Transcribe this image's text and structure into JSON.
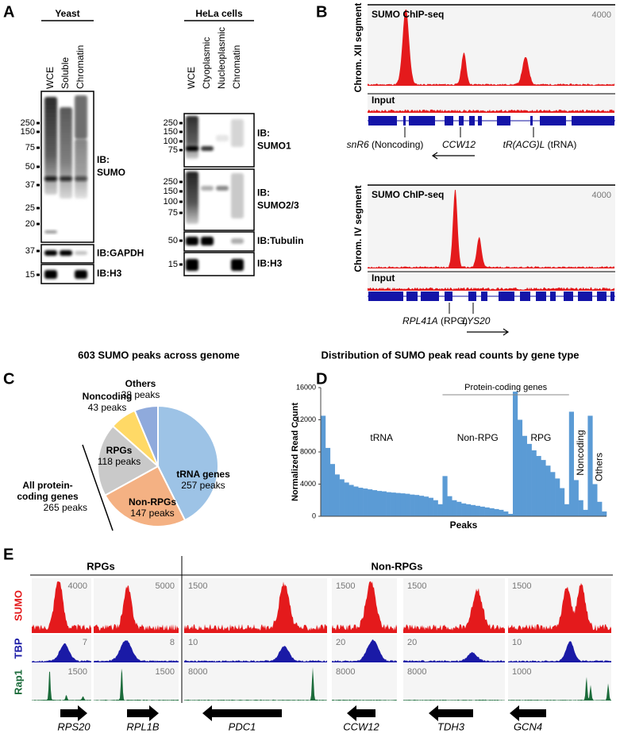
{
  "panel_letters": [
    "A",
    "B",
    "C",
    "D",
    "E"
  ],
  "panel_a": {
    "yeast": {
      "title": "Yeast",
      "lanes": [
        "WCE",
        "Soluble",
        "Chromatin"
      ],
      "blots": [
        {
          "markers": [
            250,
            150,
            75,
            50,
            37,
            25,
            20
          ],
          "label": [
            "IB:",
            "SUMO"
          ]
        },
        {
          "markers": [
            37
          ],
          "label": [
            "IB:GAPDH"
          ]
        },
        {
          "markers": [
            15
          ],
          "label": [
            "IB:H3"
          ]
        }
      ]
    },
    "hela": {
      "title": "HeLa cells",
      "lanes": [
        "WCE",
        "Ctyoplasmic",
        "Nucleoplasmic",
        "Chromatin"
      ],
      "blots": [
        {
          "markers": [
            250,
            150,
            100,
            75
          ],
          "label": [
            "IB:",
            "SUMO1"
          ]
        },
        {
          "markers": [
            250,
            150,
            100,
            75
          ],
          "label": [
            "IB:",
            "SUMO2/3"
          ]
        },
        {
          "markers": [
            50
          ],
          "label": [
            "IB:Tubulin"
          ]
        },
        {
          "markers": [
            15
          ],
          "label": [
            "IB:H3"
          ]
        }
      ]
    }
  },
  "panel_b": {
    "tracks": [
      {
        "title": "SUMO ChIP-seq",
        "scale": 4000,
        "segment": "Chrom. XII segment",
        "input": "Input",
        "genes": [
          {
            "name": "snR6",
            "note": " (Noncoding)"
          },
          {
            "name": "CCW12",
            "note": ""
          },
          {
            "name": "tR(ACG)L",
            "note": " (tRNA)"
          }
        ]
      },
      {
        "title": "SUMO ChIP-seq",
        "scale": 4000,
        "segment": "Chrom. IV segment",
        "input": "Input",
        "genes": [
          {
            "name": "RPL41A",
            "note": " (RPG)"
          },
          {
            "name": "LYS20",
            "note": ""
          }
        ]
      }
    ]
  },
  "chart_data": [
    {
      "type": "pie",
      "title": "603 SUMO peaks across genome",
      "categories": [
        "tRNA genes",
        "Non-RPGs",
        "RPGs",
        "Noncoding",
        "Others"
      ],
      "values": [
        257,
        147,
        118,
        43,
        38
      ],
      "value_labels": [
        "257 peaks",
        "147 peaks",
        "118 peaks",
        "43 peaks",
        "38 peaks"
      ],
      "colors": [
        "#9dc3e6",
        "#f4b183",
        "#c9c9c9",
        "#ffd966",
        "#8faadc"
      ],
      "annotation": {
        "label": [
          "All protein-",
          "coding genes"
        ],
        "value": "265 peaks"
      }
    },
    {
      "type": "bar",
      "title": "Distribution of SUMO peak read counts by gene type",
      "ylabel": "Normalized Read Count",
      "xlabel": "Peaks",
      "ylim": [
        0,
        16000
      ],
      "yticks": [
        0,
        4000,
        8000,
        12000,
        16000
      ],
      "color": "#5b9bd5",
      "annotation": "Protein-coding genes",
      "series": [
        {
          "name": "tRNA",
          "values": [
            12500,
            8500,
            6500,
            5200,
            4600,
            4200,
            3900,
            3700,
            3550,
            3450,
            3350,
            3250,
            3150,
            3100,
            3000,
            2950,
            2900,
            2850,
            2800,
            2700,
            2650,
            2550,
            2450,
            2300,
            2000,
            1500
          ]
        },
        {
          "name": "Non-RPG",
          "values": [
            5000,
            2500,
            2000,
            1800,
            1600,
            1500,
            1400,
            1300,
            1200,
            1100,
            1000,
            900,
            800,
            600,
            300
          ]
        },
        {
          "name": "RPG",
          "values": [
            15500,
            12000,
            10000,
            9000,
            8200,
            7500,
            7000,
            6300,
            5500,
            4700,
            3500,
            1500
          ]
        },
        {
          "name": "Noncoding",
          "values": [
            13000,
            4500,
            2000,
            800
          ]
        },
        {
          "name": "Others",
          "values": [
            12500,
            4000,
            1800,
            600
          ]
        }
      ]
    }
  ],
  "panel_e": {
    "groups": [
      "RPGs",
      "Non-RPGs"
    ],
    "tracks": [
      "SUMO",
      "TBP",
      "Rap1"
    ],
    "columns": [
      {
        "gene": "RPS20",
        "scales": [
          4000,
          7,
          1500
        ]
      },
      {
        "gene": "RPL1B",
        "scales": [
          5000,
          8,
          1500
        ]
      },
      {
        "gene": "PDC1",
        "scales": [
          1500,
          10,
          8000
        ]
      },
      {
        "gene": "CCW12",
        "scales": [
          1500,
          20,
          8000
        ]
      },
      {
        "gene": "TDH3",
        "scales": [
          1500,
          20,
          8000
        ]
      },
      {
        "gene": "GCN4",
        "scales": [
          1500,
          10,
          1000
        ]
      }
    ]
  }
}
